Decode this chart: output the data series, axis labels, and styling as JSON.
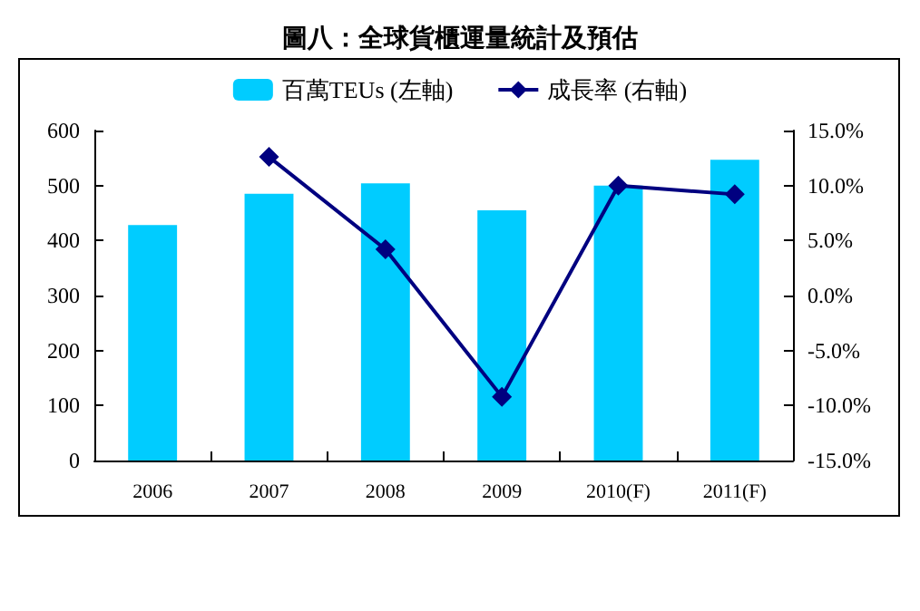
{
  "chart_data": {
    "type": "bar",
    "title": "圖八：全球貨櫃運量統計及預估",
    "categories": [
      "2006",
      "2007",
      "2008",
      "2009",
      "2010(F)",
      "2011(F)"
    ],
    "series": [
      {
        "name": "百萬TEUs (左軸)",
        "color": "#00ccff",
        "values": [
          428,
          485,
          504,
          455,
          500,
          547
        ]
      },
      {
        "name": "成長率 (右軸)",
        "type": "line",
        "axis": "y2",
        "color": "#000080",
        "marker": "diamond",
        "values": [
          null,
          12.6,
          4.2,
          -9.2,
          10.0,
          9.2
        ]
      }
    ],
    "ylim": [
      0,
      600
    ],
    "yticks": [
      0,
      100,
      200,
      300,
      400,
      500,
      600
    ],
    "y2lim": [
      -15,
      15
    ],
    "y2ticks": [
      {
        "value": -15,
        "label": "-15.0%"
      },
      {
        "value": -10,
        "label": "-10.0%"
      },
      {
        "value": -5,
        "label": "-5.0%"
      },
      {
        "value": 0,
        "label": "0.0%"
      },
      {
        "value": 5,
        "label": "5.0%"
      },
      {
        "value": 10,
        "label": "10.0%"
      },
      {
        "value": 15,
        "label": "15.0%"
      }
    ],
    "grid": false,
    "legend": "top"
  }
}
